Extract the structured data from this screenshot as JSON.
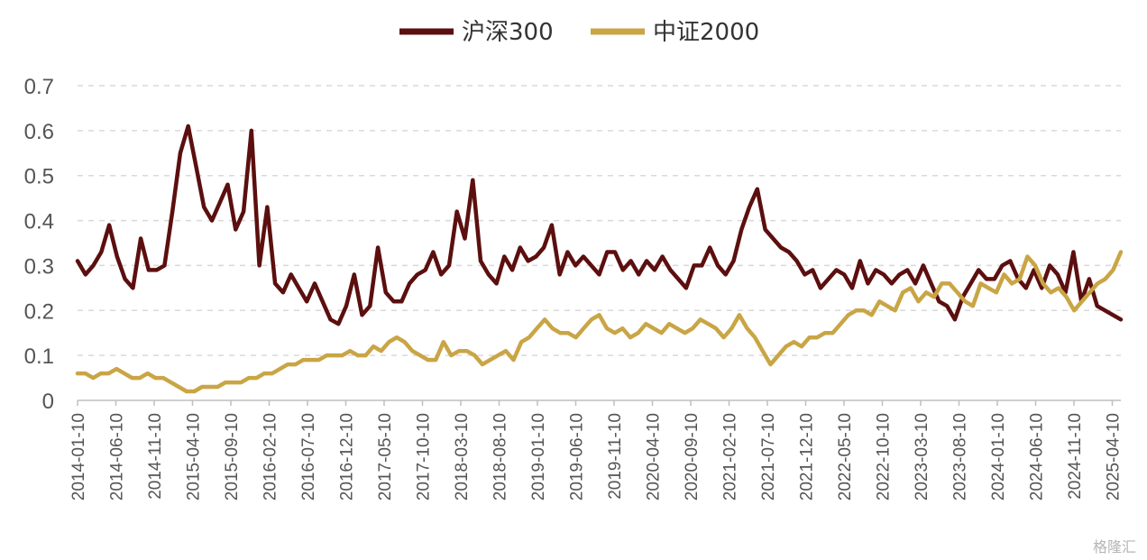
{
  "chart_data": {
    "type": "line",
    "title": "",
    "xlabel": "",
    "ylabel": "",
    "ylim": [
      0,
      0.7
    ],
    "yticks": [
      0,
      0.1,
      0.2,
      0.3,
      0.4,
      0.5,
      0.6,
      0.7
    ],
    "ytick_labels": [
      "0",
      "0.1",
      "0.2",
      "0.3",
      "0.4",
      "0.5",
      "0.6",
      "0.7"
    ],
    "xtick_labels": [
      "2014-01-10",
      "2014-06-10",
      "2014-11-10",
      "2015-04-10",
      "2015-09-10",
      "2016-02-10",
      "2016-07-10",
      "2016-12-10",
      "2017-05-10",
      "2017-10-10",
      "2018-03-10",
      "2018-08-10",
      "2019-01-10",
      "2019-06-10",
      "2019-11-10",
      "2020-04-10",
      "2020-09-10",
      "2021-02-10",
      "2021-07-10",
      "2021-12-10",
      "2022-05-10",
      "2022-10-10",
      "2023-03-10",
      "2023-08-10",
      "2024-01-10",
      "2024-06-10",
      "2024-11-10",
      "2025-04-10"
    ],
    "grid": "horizontal-dashed",
    "legend_position": "top-center",
    "series": [
      {
        "name": "沪深300",
        "color": "#5c0f0f",
        "values": [
          0.31,
          0.28,
          0.3,
          0.33,
          0.39,
          0.32,
          0.27,
          0.25,
          0.36,
          0.29,
          0.29,
          0.3,
          0.42,
          0.55,
          0.61,
          0.52,
          0.43,
          0.4,
          0.44,
          0.48,
          0.38,
          0.42,
          0.6,
          0.3,
          0.43,
          0.26,
          0.24,
          0.28,
          0.25,
          0.22,
          0.26,
          0.22,
          0.18,
          0.17,
          0.21,
          0.28,
          0.19,
          0.21,
          0.34,
          0.24,
          0.22,
          0.22,
          0.26,
          0.28,
          0.29,
          0.33,
          0.28,
          0.3,
          0.42,
          0.36,
          0.49,
          0.31,
          0.28,
          0.26,
          0.32,
          0.29,
          0.34,
          0.31,
          0.32,
          0.34,
          0.39,
          0.28,
          0.33,
          0.3,
          0.32,
          0.3,
          0.28,
          0.33,
          0.33,
          0.29,
          0.31,
          0.28,
          0.31,
          0.29,
          0.32,
          0.29,
          0.27,
          0.25,
          0.3,
          0.3,
          0.34,
          0.3,
          0.28,
          0.31,
          0.38,
          0.43,
          0.47,
          0.38,
          0.36,
          0.34,
          0.33,
          0.31,
          0.28,
          0.29,
          0.25,
          0.27,
          0.29,
          0.28,
          0.25,
          0.31,
          0.26,
          0.29,
          0.28,
          0.26,
          0.28,
          0.29,
          0.26,
          0.3,
          0.26,
          0.22,
          0.21,
          0.18,
          0.23,
          0.26,
          0.29,
          0.27,
          0.27,
          0.3,
          0.31,
          0.27,
          0.25,
          0.29,
          0.25,
          0.3,
          0.28,
          0.24,
          0.33,
          0.22,
          0.27,
          0.21,
          0.2,
          0.19,
          0.18
        ]
      },
      {
        "name": "中证2000",
        "color": "#c9a545",
        "values": [
          0.06,
          0.06,
          0.05,
          0.06,
          0.06,
          0.07,
          0.06,
          0.05,
          0.05,
          0.06,
          0.05,
          0.05,
          0.04,
          0.03,
          0.02,
          0.02,
          0.03,
          0.03,
          0.03,
          0.04,
          0.04,
          0.04,
          0.05,
          0.05,
          0.06,
          0.06,
          0.07,
          0.08,
          0.08,
          0.09,
          0.09,
          0.09,
          0.1,
          0.1,
          0.1,
          0.11,
          0.1,
          0.1,
          0.12,
          0.11,
          0.13,
          0.14,
          0.13,
          0.11,
          0.1,
          0.09,
          0.09,
          0.13,
          0.1,
          0.11,
          0.11,
          0.1,
          0.08,
          0.09,
          0.1,
          0.11,
          0.09,
          0.13,
          0.14,
          0.16,
          0.18,
          0.16,
          0.15,
          0.15,
          0.14,
          0.16,
          0.18,
          0.19,
          0.16,
          0.15,
          0.16,
          0.14,
          0.15,
          0.17,
          0.16,
          0.15,
          0.17,
          0.16,
          0.15,
          0.16,
          0.18,
          0.17,
          0.16,
          0.14,
          0.16,
          0.19,
          0.16,
          0.14,
          0.11,
          0.08,
          0.1,
          0.12,
          0.13,
          0.12,
          0.14,
          0.14,
          0.15,
          0.15,
          0.17,
          0.19,
          0.2,
          0.2,
          0.19,
          0.22,
          0.21,
          0.2,
          0.24,
          0.25,
          0.22,
          0.24,
          0.23,
          0.26,
          0.26,
          0.24,
          0.22,
          0.21,
          0.26,
          0.25,
          0.24,
          0.28,
          0.26,
          0.27,
          0.32,
          0.3,
          0.26,
          0.24,
          0.25,
          0.23,
          0.2,
          0.22,
          0.24,
          0.26,
          0.27,
          0.29,
          0.33
        ]
      }
    ],
    "watermark": "格隆汇"
  }
}
